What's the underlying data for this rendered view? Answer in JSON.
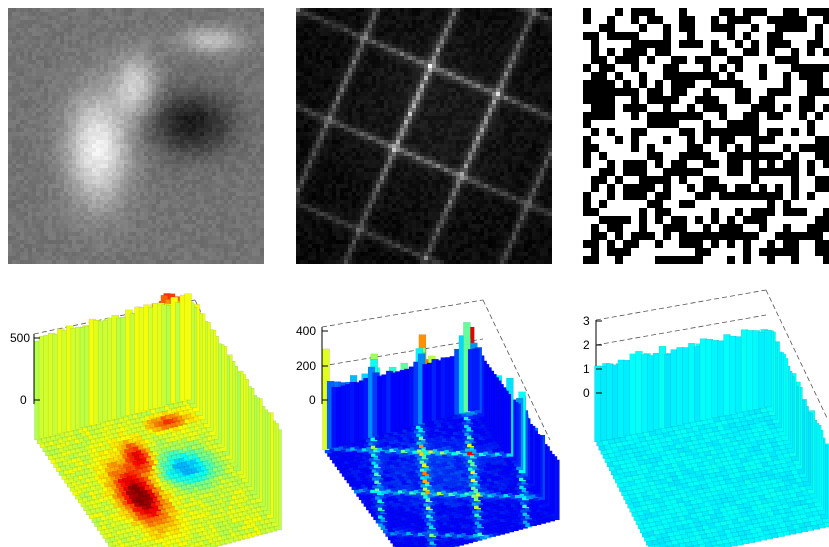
{
  "panels": {
    "top_row": [
      {
        "name": "grayscale-image"
      },
      {
        "name": "edge-response-image"
      },
      {
        "name": "binary-noise-image"
      }
    ]
  },
  "chart_data": [
    {
      "type": "surface3d",
      "panel": "bottom-left",
      "zlim": [
        0,
        500
      ],
      "zticks": [
        "0",
        "500"
      ],
      "colormap": "jet",
      "grid": true
    },
    {
      "type": "surface3d",
      "panel": "bottom-middle",
      "zlim": [
        0,
        400
      ],
      "zticks": [
        "0",
        "200",
        "400"
      ],
      "colormap": "jet",
      "grid": true
    },
    {
      "type": "surface3d",
      "panel": "bottom-right",
      "zlim": [
        0,
        3
      ],
      "zticks": [
        "0",
        "1",
        "2",
        "3"
      ],
      "colormap": "jet",
      "grid": true
    }
  ]
}
